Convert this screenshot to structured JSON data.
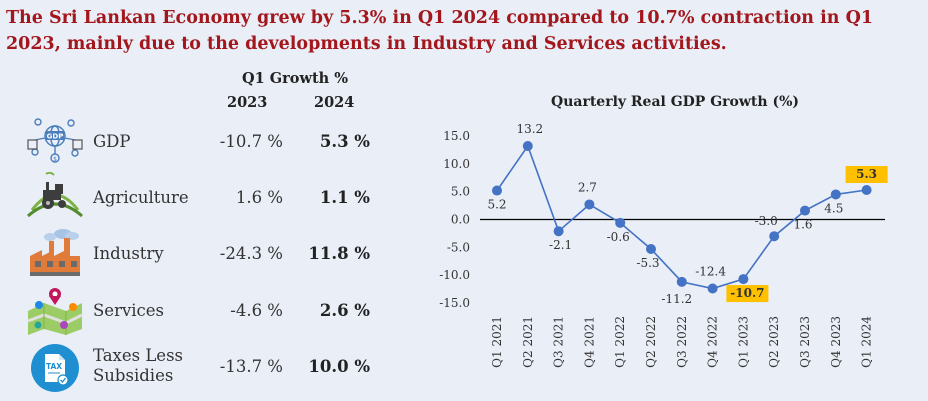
{
  "headline": "The Sri Lankan Economy grew by 5.3% in Q1 2024 compared to 10.7% contraction in Q1 2023, mainly due to the developments in Industry and Services activities.",
  "table": {
    "title": "Q1 Growth %",
    "col_2023": "2023",
    "col_2024": "2024",
    "rows": [
      {
        "label": "GDP",
        "v2023": "-10.7 %",
        "v2024": "5.3 %",
        "icon": "gdp-network-icon"
      },
      {
        "label": "Agriculture",
        "v2023": "1.6 %",
        "v2024": "1.1 %",
        "icon": "tractor-icon"
      },
      {
        "label": "Industry",
        "v2023": "-24.3 %",
        "v2024": "11.8 %",
        "icon": "factory-icon"
      },
      {
        "label": "Services",
        "v2023": "-4.6 %",
        "v2024": "2.6 %",
        "icon": "services-map-icon"
      },
      {
        "label_line1": "Taxes Less",
        "label_line2": "Subsidies",
        "v2023": "-13.7 %",
        "v2024": "10.0 %",
        "icon": "tax-document-icon"
      }
    ]
  },
  "chart_data": {
    "type": "line",
    "title": "Quarterly Real GDP Growth (%)",
    "categories": [
      "Q1 2021",
      "Q2 2021",
      "Q3 2021",
      "Q4 2021",
      "Q1 2022",
      "Q2 2022",
      "Q3 2022",
      "Q4 2022",
      "Q1 2023",
      "Q2 2023",
      "Q3 2023",
      "Q4 2023",
      "Q1 2024"
    ],
    "values": [
      5.2,
      13.2,
      -2.1,
      2.7,
      -0.6,
      -5.3,
      -11.2,
      -12.4,
      -10.7,
      -3.0,
      1.6,
      4.5,
      5.3
    ],
    "labels": [
      "5.2",
      "13.2",
      "-2.1",
      "2.7",
      "-0.6",
      "-5.3",
      "-11.2",
      "-12.4",
      "-10.7",
      "-3.0",
      "1.6",
      "4.5",
      "5.3"
    ],
    "highlighted": [
      "Q1 2023",
      "Q1 2024"
    ],
    "yticks": [
      "15.0",
      "10.0",
      "5.0",
      "0.0",
      "-5.0",
      "-10.0",
      "-15.0"
    ],
    "ylim": [
      -15,
      15
    ],
    "line_color": "#4472c4",
    "highlight_color": "#ffc000",
    "grid": false
  }
}
